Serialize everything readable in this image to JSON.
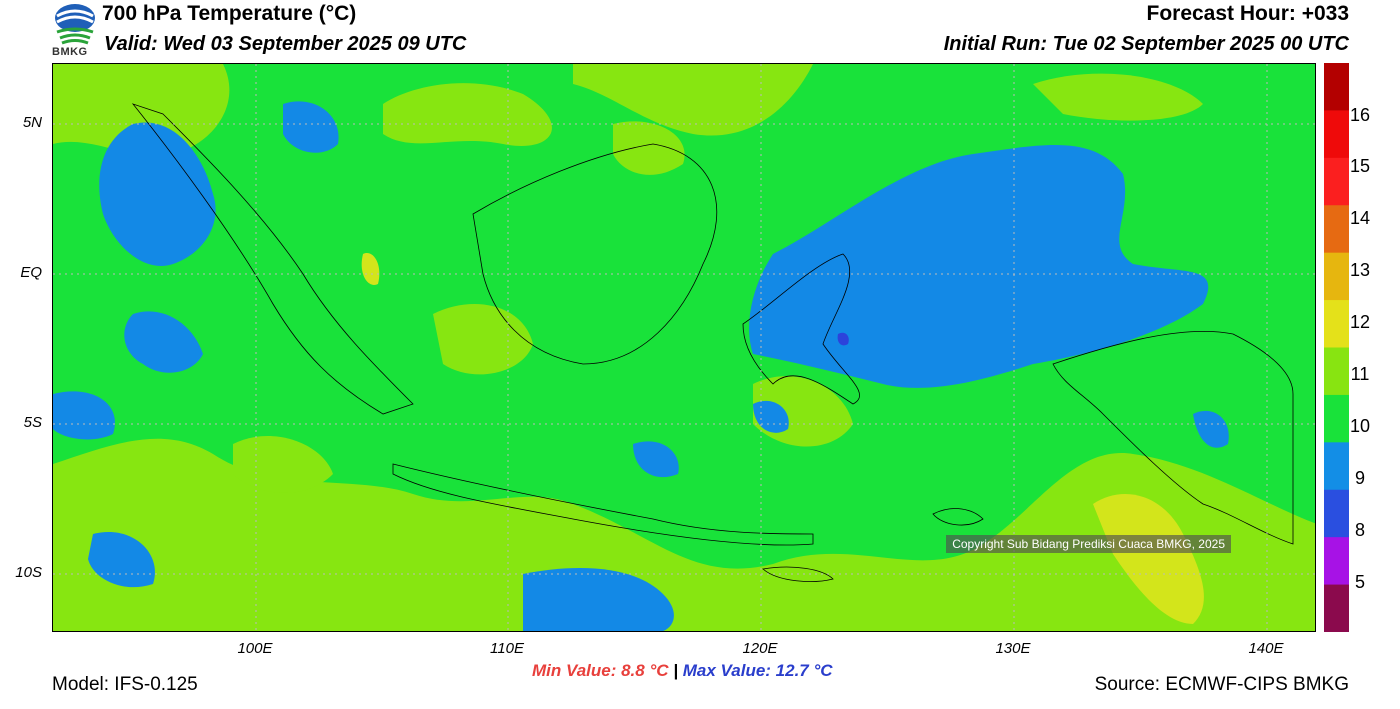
{
  "header": {
    "title": "700 hPa Temperature (°C)",
    "valid": "Valid: Wed 03 September 2025 09 UTC",
    "forecast_hour": "Forecast Hour: +033",
    "initial_run": "Initial Run: Tue 02 September 2025 00 UTC",
    "logo_text": "BMKG"
  },
  "map": {
    "lat_labels": [
      "5N",
      "EQ",
      "5S",
      "10S"
    ],
    "lon_labels": [
      "100E",
      "110E",
      "120E",
      "130E",
      "140E"
    ],
    "copyright": "Copyright Sub Bidang Prediksi Cuaca BMKG, 2025"
  },
  "colorbar": {
    "labels": [
      "16",
      "15",
      "14",
      "13",
      "12",
      "11",
      "10",
      "9",
      "8",
      "5"
    ],
    "colors": [
      "#b30000",
      "#ef0a0a",
      "#fb1f1f",
      "#e66a12",
      "#e6b60f",
      "#e4e11a",
      "#88e411",
      "#19e23a",
      "#138ee6",
      "#2a4fe0",
      "#a712e6",
      "#8b0a4d"
    ]
  },
  "field_colors": {
    "t9": "#1389e6",
    "t10": "#19e23a",
    "t11": "#87e611",
    "t12": "#d3e51b",
    "t8": "#2c43db",
    "t5": "#a612ea"
  },
  "stats": {
    "min_label": "Min Value: 8.8 °C",
    "separator": "|",
    "max_label": "Max Value: 12.7 °C"
  },
  "footer": {
    "model": "Model: IFS-0.125",
    "source": "Source: ECMWF-CIPS BMKG"
  }
}
